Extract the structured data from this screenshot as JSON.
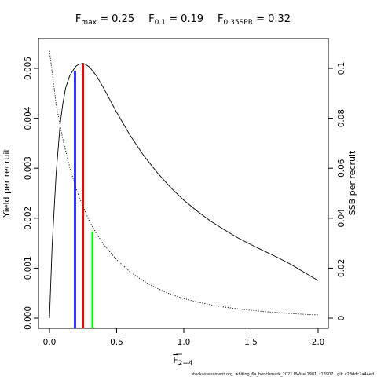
{
  "title": {
    "fmax": {
      "sym": "F",
      "sub": "max",
      "rest": " = 0.25"
    },
    "f01": {
      "sym": "F",
      "sub": "0.1",
      "rest": " = 0.19"
    },
    "fspr": {
      "sym": "F",
      "sub": "0.35SPR",
      "rest": " = 0.32"
    }
  },
  "axes": {
    "xlabel": {
      "sym": "F",
      "sub": "2−4"
    },
    "ylabel_left": "Yield per recruit",
    "ylabel_right": "SSB per recruit"
  },
  "footer": "stockassessment.org, whiting_6a_benchmark_2021 PWise 1981, r13907 , git: c28ddc2a44ed",
  "chart_data": {
    "type": "line",
    "xlim": [
      0,
      2
    ],
    "ylim_left": [
      0,
      0.005
    ],
    "ylim_right": [
      0,
      0.1
    ],
    "x_ticks": [
      "0.0",
      "0.5",
      "1.0",
      "1.5",
      "2.0"
    ],
    "x_tick_values": [
      0,
      0.5,
      1.0,
      1.5,
      2.0
    ],
    "y_left_ticks": [
      "0.000",
      "0.001",
      "0.002",
      "0.003",
      "0.004",
      "0.005"
    ],
    "y_left_tick_values": [
      0,
      0.001,
      0.002,
      0.003,
      0.004,
      0.005
    ],
    "y_right_ticks": [
      "0",
      "0.02",
      "0.04",
      "0.06",
      "0.08",
      "0.1"
    ],
    "y_right_tick_values": [
      0,
      0.02,
      0.04,
      0.06,
      0.08,
      0.1
    ],
    "series": [
      {
        "axis": "left",
        "style": "solid",
        "color": "#000000",
        "x": [
          0,
          0.02,
          0.05,
          0.08,
          0.1,
          0.12,
          0.15,
          0.18,
          0.2,
          0.22,
          0.25,
          0.28,
          0.3,
          0.35,
          0.4,
          0.45,
          0.5,
          0.6,
          0.7,
          0.8,
          0.9,
          1.0,
          1.1,
          1.2,
          1.3,
          1.4,
          1.5,
          1.6,
          1.7,
          1.8,
          1.9,
          2.0
        ],
        "y": [
          0.0,
          0.00145,
          0.0029,
          0.0039,
          0.0043,
          0.0046,
          0.00485,
          0.00498,
          0.00505,
          0.00508,
          0.0051,
          0.00506,
          0.00502,
          0.00485,
          0.00462,
          0.00437,
          0.00412,
          0.00366,
          0.00326,
          0.00292,
          0.00262,
          0.00236,
          0.00214,
          0.00194,
          0.00177,
          0.00161,
          0.00147,
          0.00134,
          0.00121,
          0.00107,
          0.00091,
          0.00075
        ]
      },
      {
        "axis": "right",
        "style": "dotted",
        "color": "#000000",
        "x": [
          0,
          0.05,
          0.1,
          0.15,
          0.2,
          0.25,
          0.3,
          0.35,
          0.4,
          0.5,
          0.6,
          0.7,
          0.8,
          0.9,
          1.0,
          1.1,
          1.2,
          1.3,
          1.4,
          1.5,
          1.6,
          1.7,
          1.8,
          1.9,
          2.0
        ],
        "y": [
          0.107,
          0.0855,
          0.0715,
          0.0605,
          0.0515,
          0.0445,
          0.0385,
          0.0338,
          0.0297,
          0.0233,
          0.0185,
          0.0148,
          0.0119,
          0.0096,
          0.0078,
          0.0064,
          0.0053,
          0.0044,
          0.0037,
          0.0031,
          0.0026,
          0.0022,
          0.0018,
          0.0015,
          0.0013
        ]
      }
    ],
    "reference_lines": [
      {
        "x": 0.19,
        "y_left": 0.00495,
        "color": "#0000ff"
      },
      {
        "x": 0.25,
        "y_left": 0.0051,
        "color": "#ff0000"
      },
      {
        "x": 0.32,
        "y_left": 0.00173,
        "color": "#00ff00"
      }
    ]
  }
}
